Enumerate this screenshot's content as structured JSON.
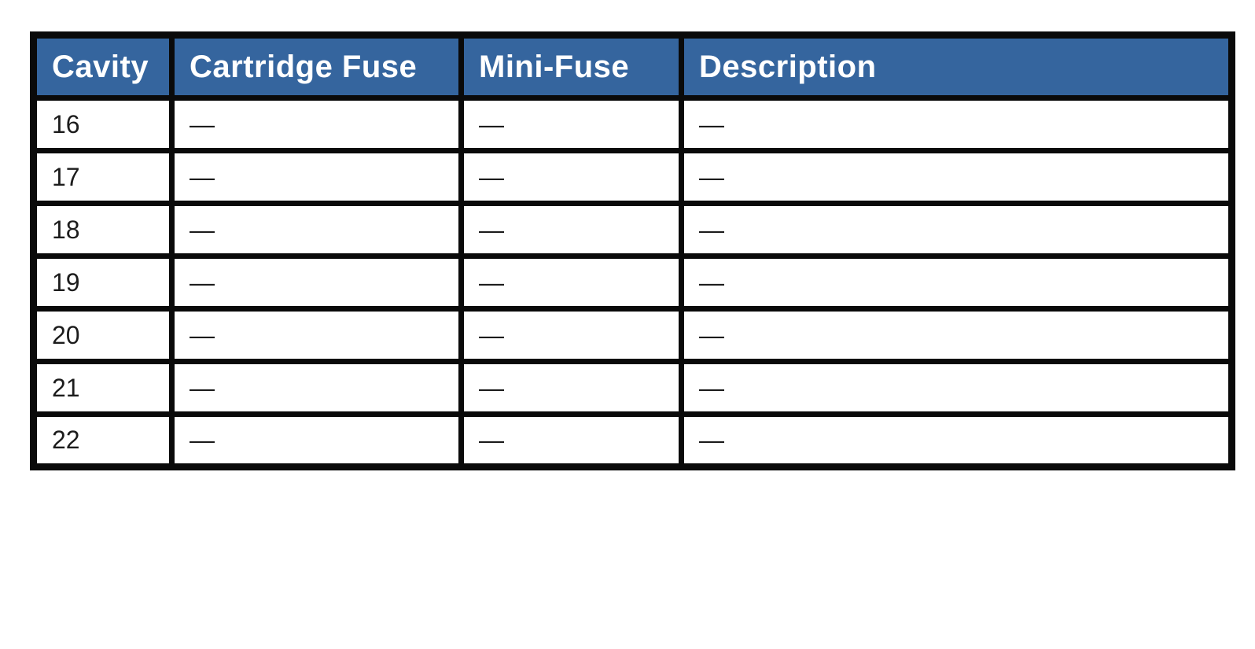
{
  "table": {
    "columns": [
      {
        "key": "cavity",
        "label": "Cavity"
      },
      {
        "key": "cartridge_fuse",
        "label": "Cartridge Fuse"
      },
      {
        "key": "mini_fuse",
        "label": "Mini-Fuse"
      },
      {
        "key": "description",
        "label": "Description"
      }
    ],
    "rows": [
      {
        "cavity": "16",
        "cartridge_fuse": "—",
        "mini_fuse": "—",
        "description": "—"
      },
      {
        "cavity": "17",
        "cartridge_fuse": "—",
        "mini_fuse": "—",
        "description": "—"
      },
      {
        "cavity": "18",
        "cartridge_fuse": "—",
        "mini_fuse": "—",
        "description": "—"
      },
      {
        "cavity": "19",
        "cartridge_fuse": "—",
        "mini_fuse": "—",
        "description": "—"
      },
      {
        "cavity": "20",
        "cartridge_fuse": "—",
        "mini_fuse": "—",
        "description": "—"
      },
      {
        "cavity": "21",
        "cartridge_fuse": "—",
        "mini_fuse": "—",
        "description": "—"
      },
      {
        "cavity": "22",
        "cartridge_fuse": "—",
        "mini_fuse": "—",
        "description": "—"
      }
    ]
  },
  "colors": {
    "header_bg": "#35659E",
    "header_text": "#FFFFFF",
    "border": "#0A0A0A",
    "row_text": "#1C1C1C",
    "page_bg": "#FFFFFF"
  }
}
